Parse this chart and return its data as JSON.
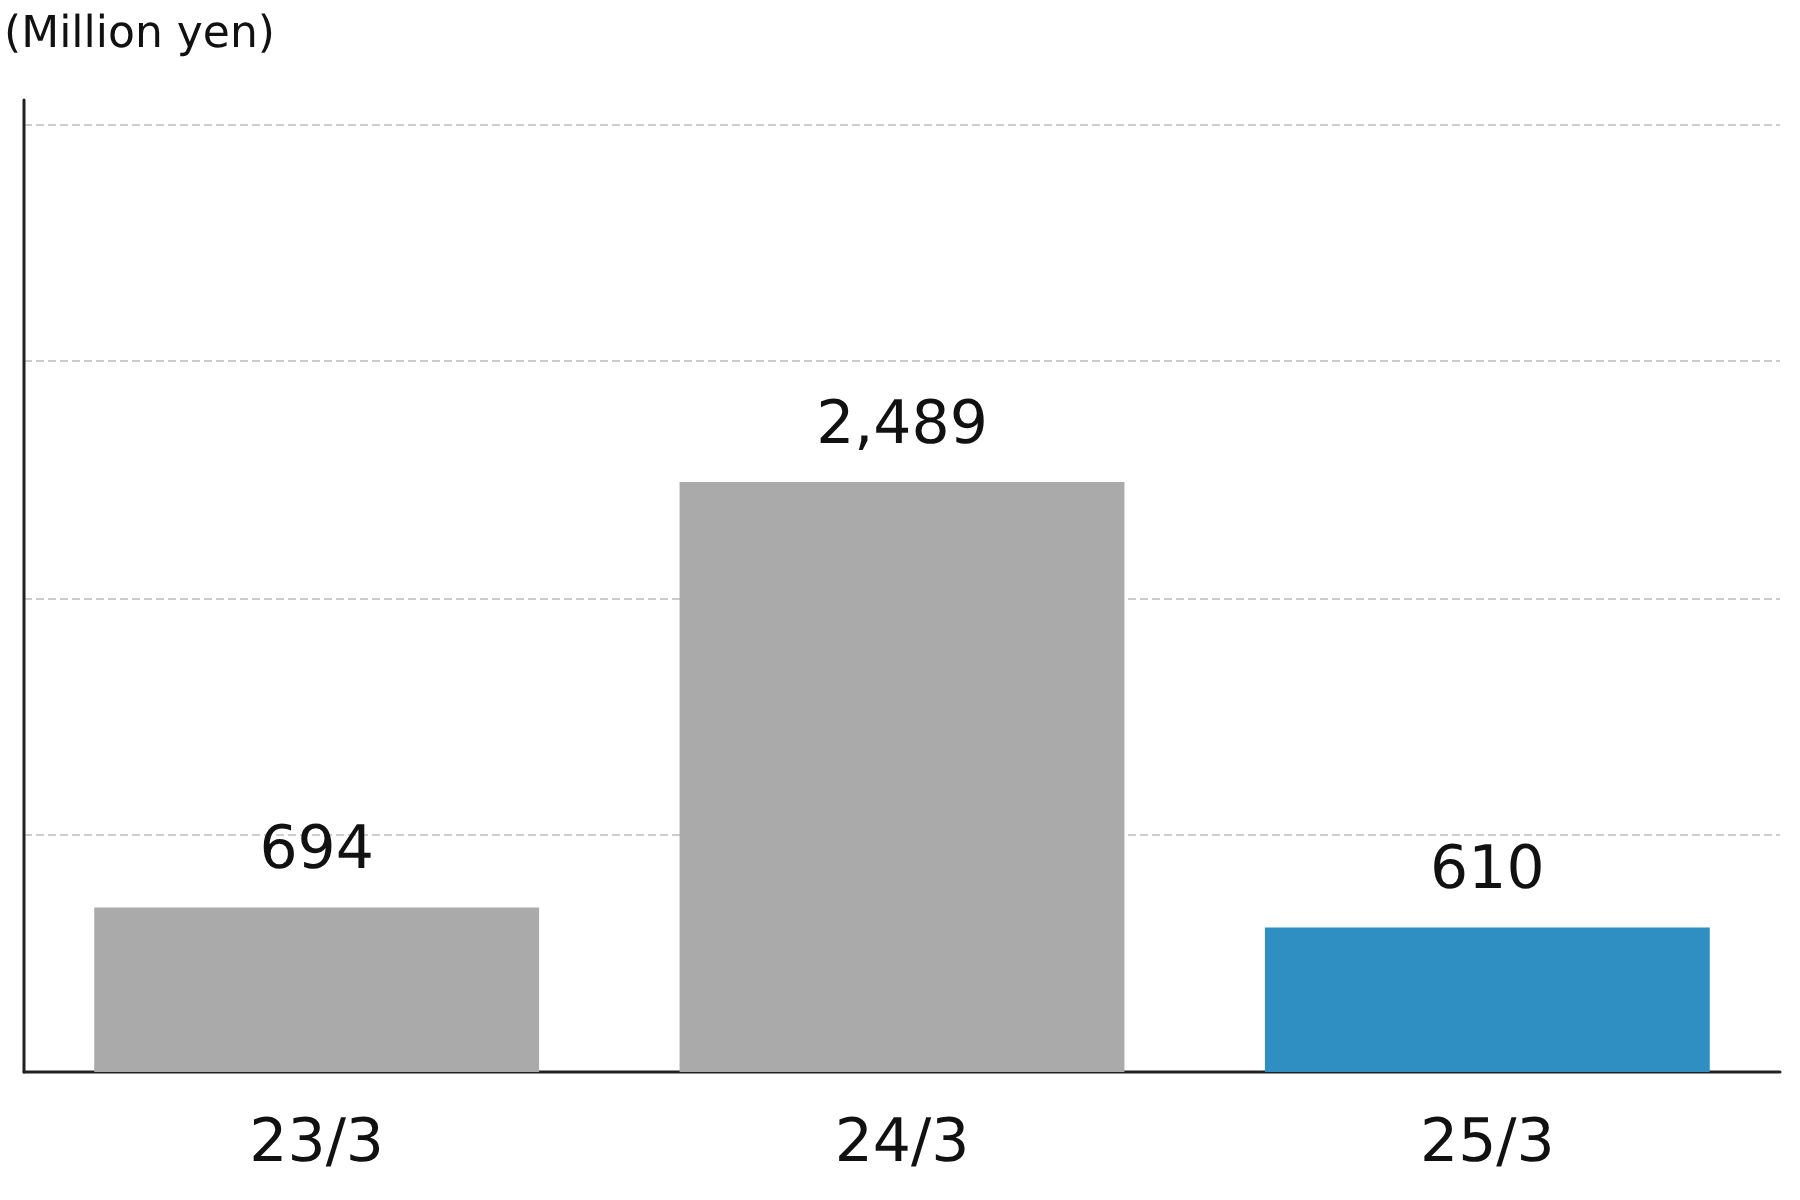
{
  "chart_data": {
    "type": "bar",
    "ylabel": "(Million yen)",
    "categories": [
      "23/3",
      "24/3",
      "25/3"
    ],
    "values": [
      694,
      2489,
      610
    ],
    "colors": [
      "#aaaaaa",
      "#aaaaaa",
      "#2f8fc2"
    ],
    "value_labels": [
      "694",
      "2,489",
      "610"
    ],
    "ylim": [
      0,
      4100
    ],
    "yticks": [
      {
        "value": 1000,
        "label": null
      },
      {
        "value": 2000,
        "label": null
      },
      {
        "value": 3000,
        "label": null
      },
      {
        "value": 4000,
        "label": null
      }
    ],
    "grid": "y",
    "tick_labels": "x"
  }
}
